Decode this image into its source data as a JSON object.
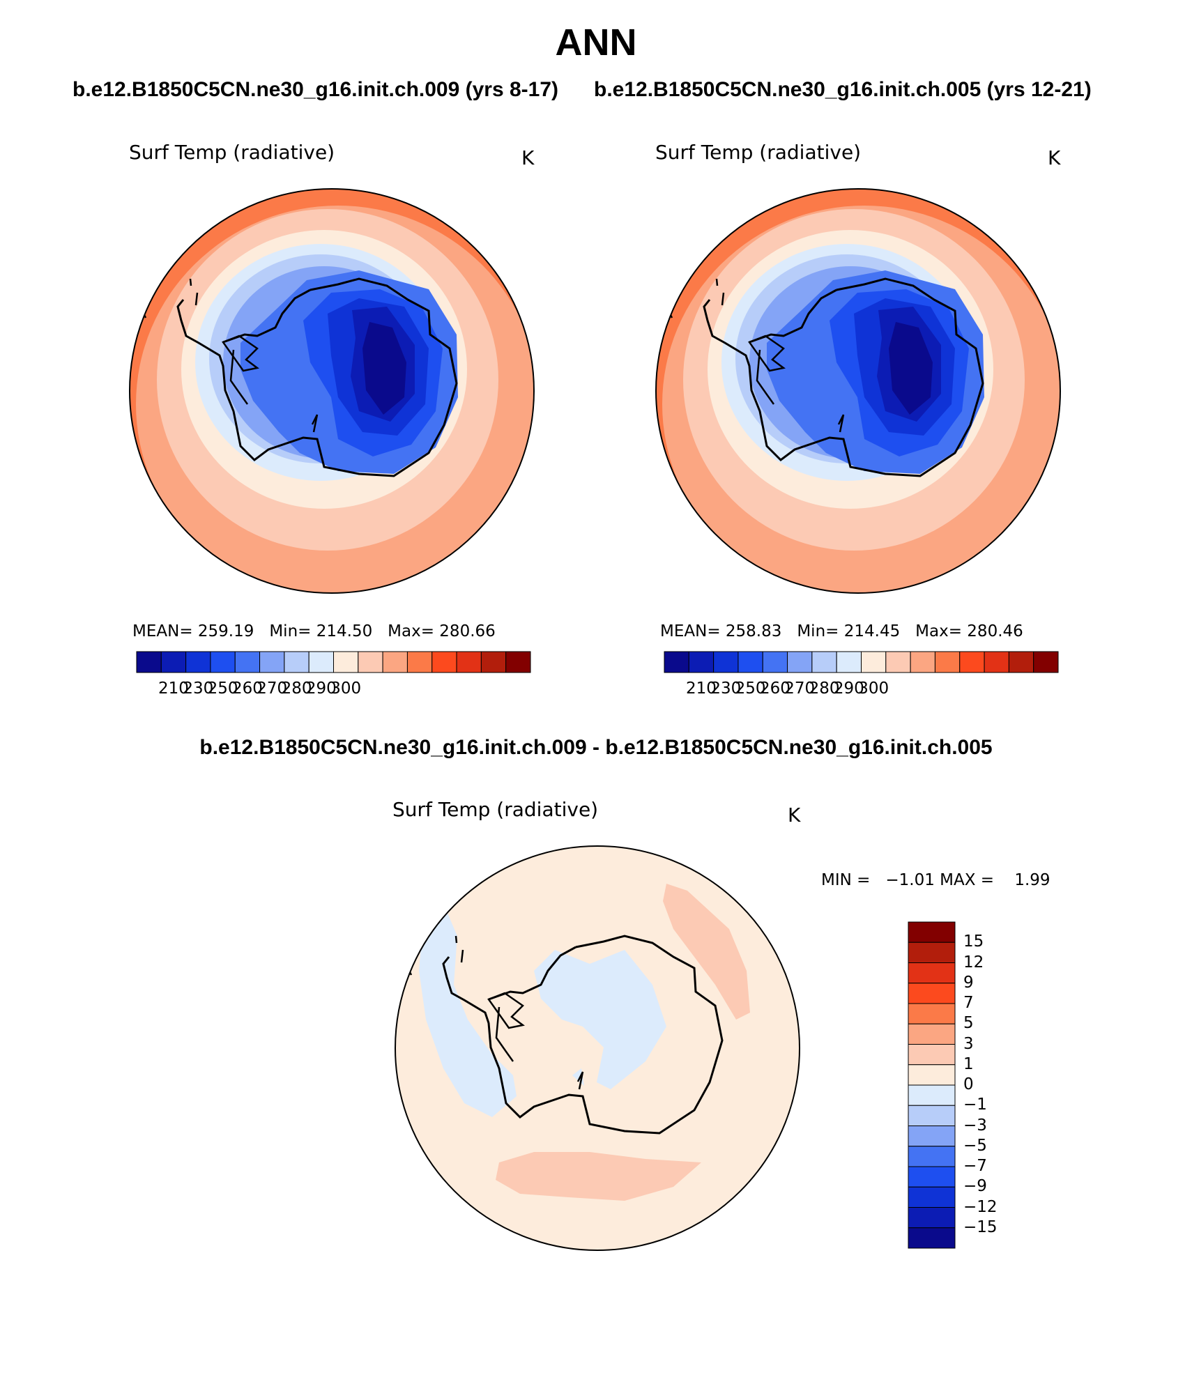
{
  "title": "ANN",
  "case_labels": [
    "b.e12.B1850C5CN.ne30_g16.init.ch.009 (yrs 8-17)",
    "b.e12.B1850C5CN.ne30_g16.init.ch.005 (yrs 12-21)"
  ],
  "diff_title": "b.e12.B1850C5CN.ne30_g16.init.ch.009 - b.e12.B1850C5CN.ne30_g16.init.ch.005",
  "panels": [
    {
      "variable": "Surf Temp (radiative)",
      "units": "K",
      "mean_label": "MEAN=",
      "mean": "259.19",
      "min_label": "Min=",
      "min": "214.50",
      "max_label": "Max=",
      "max": "280.66"
    },
    {
      "variable": "Surf Temp (radiative)",
      "units": "K",
      "mean_label": "MEAN=",
      "mean": "258.83",
      "min_label": "Min=",
      "min": "214.45",
      "max_label": "Max=",
      "max": "280.46"
    }
  ],
  "diff_panel": {
    "variable": "Surf Temp (radiative)",
    "units": "K",
    "min_label": "MIN =",
    "min": "−1.01",
    "max_label": "MAX =",
    "max": "1.99"
  },
  "abs_colorbar": {
    "colors": [
      "#0a0a8c",
      "#0c1cb4",
      "#0f33d6",
      "#1e4ff0",
      "#4473f3",
      "#84a4f6",
      "#b7cdf9",
      "#dcebfc",
      "#fdecdc",
      "#fccab4",
      "#fba682",
      "#fb7a48",
      "#fc4a1e",
      "#e23216",
      "#b21e0c",
      "#820000"
    ],
    "ticks": [
      "210",
      "230",
      "250",
      "260",
      "270",
      "280",
      "290",
      "300"
    ]
  },
  "diff_colorbar": {
    "colors": [
      "#820000",
      "#b21e0c",
      "#e23216",
      "#fc4a1e",
      "#fb7a48",
      "#fba682",
      "#fccab4",
      "#fdecdc",
      "#dcebfc",
      "#b7cdf9",
      "#84a4f6",
      "#4473f3",
      "#1e4ff0",
      "#0f33d6",
      "#0c1cb4",
      "#0a0a8c"
    ],
    "ticks": [
      "15",
      "12",
      "9",
      "7",
      "5",
      "3",
      "1",
      "0",
      "−1",
      "−3",
      "−5",
      "−7",
      "−9",
      "−12",
      "−15"
    ]
  }
}
